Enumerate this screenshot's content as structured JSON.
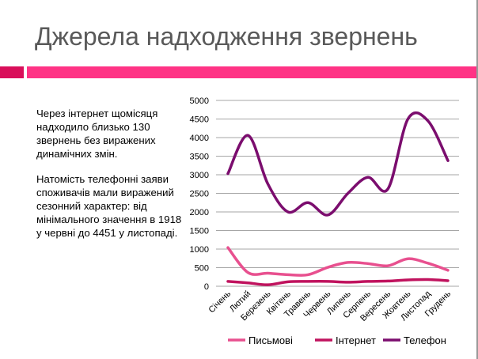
{
  "slide": {
    "title": "Джерела надходження звернень",
    "paragraphs": [
      "Через інтернет щомісяця надходило близько 130 звернень без виражених динамічних змін.",
      "Натомість телефонні заяви споживачів мали виражений сезонний характер: від мінімального значення в 1918 у червні до 4451 у листопаді."
    ]
  },
  "chart_data": {
    "type": "line",
    "title": "",
    "xlabel": "",
    "ylabel": "",
    "ylim": [
      0,
      5000
    ],
    "yticks": [
      "0",
      "500",
      "1000",
      "1500",
      "2000",
      "2500",
      "3000",
      "3500",
      "4000",
      "4500",
      "5000"
    ],
    "grid": true,
    "legend_position": "bottom",
    "categories": [
      "Січень",
      "Лютий",
      "Березень",
      "Квітень",
      "Травень",
      "Червень",
      "Липень",
      "Серпень",
      "Вересень",
      "Жовтень",
      "Листопад",
      "Грудень"
    ],
    "series": [
      {
        "name": "Письмові",
        "color": "#e8508f",
        "values": [
          1040,
          370,
          350,
          310,
          310,
          510,
          640,
          610,
          550,
          740,
          620,
          430
        ]
      },
      {
        "name": "Інтернет",
        "color": "#c0135e",
        "values": [
          130,
          90,
          40,
          120,
          130,
          130,
          110,
          130,
          140,
          170,
          180,
          150
        ]
      },
      {
        "name": "Телефон",
        "color": "#7b0d6e",
        "values": [
          3030,
          4060,
          2750,
          2000,
          2250,
          1918,
          2500,
          2930,
          2620,
          4500,
          4451,
          3380
        ]
      }
    ]
  }
}
